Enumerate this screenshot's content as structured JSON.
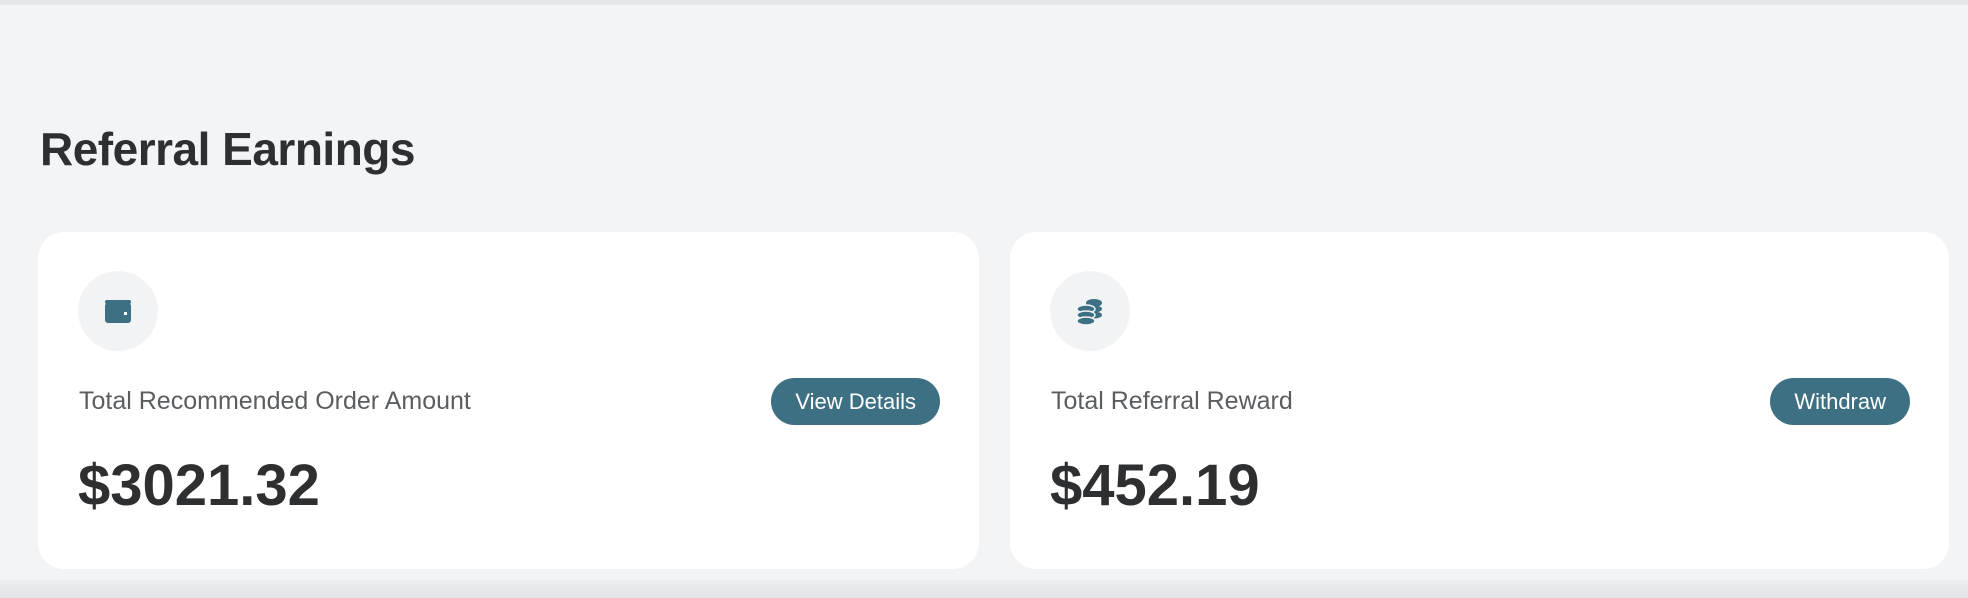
{
  "page": {
    "title": "Referral Earnings"
  },
  "colors": {
    "accent": "#3e7083",
    "background": "#f2f4f6",
    "card": "#ffffff"
  },
  "cards": [
    {
      "icon": "wallet-icon",
      "label": "Total Recommended Order Amount",
      "button": "View Details",
      "value": "$3021.32"
    },
    {
      "icon": "coins-icon",
      "label": "Total Referral Reward",
      "button": "Withdraw",
      "value": "$452.19"
    }
  ]
}
